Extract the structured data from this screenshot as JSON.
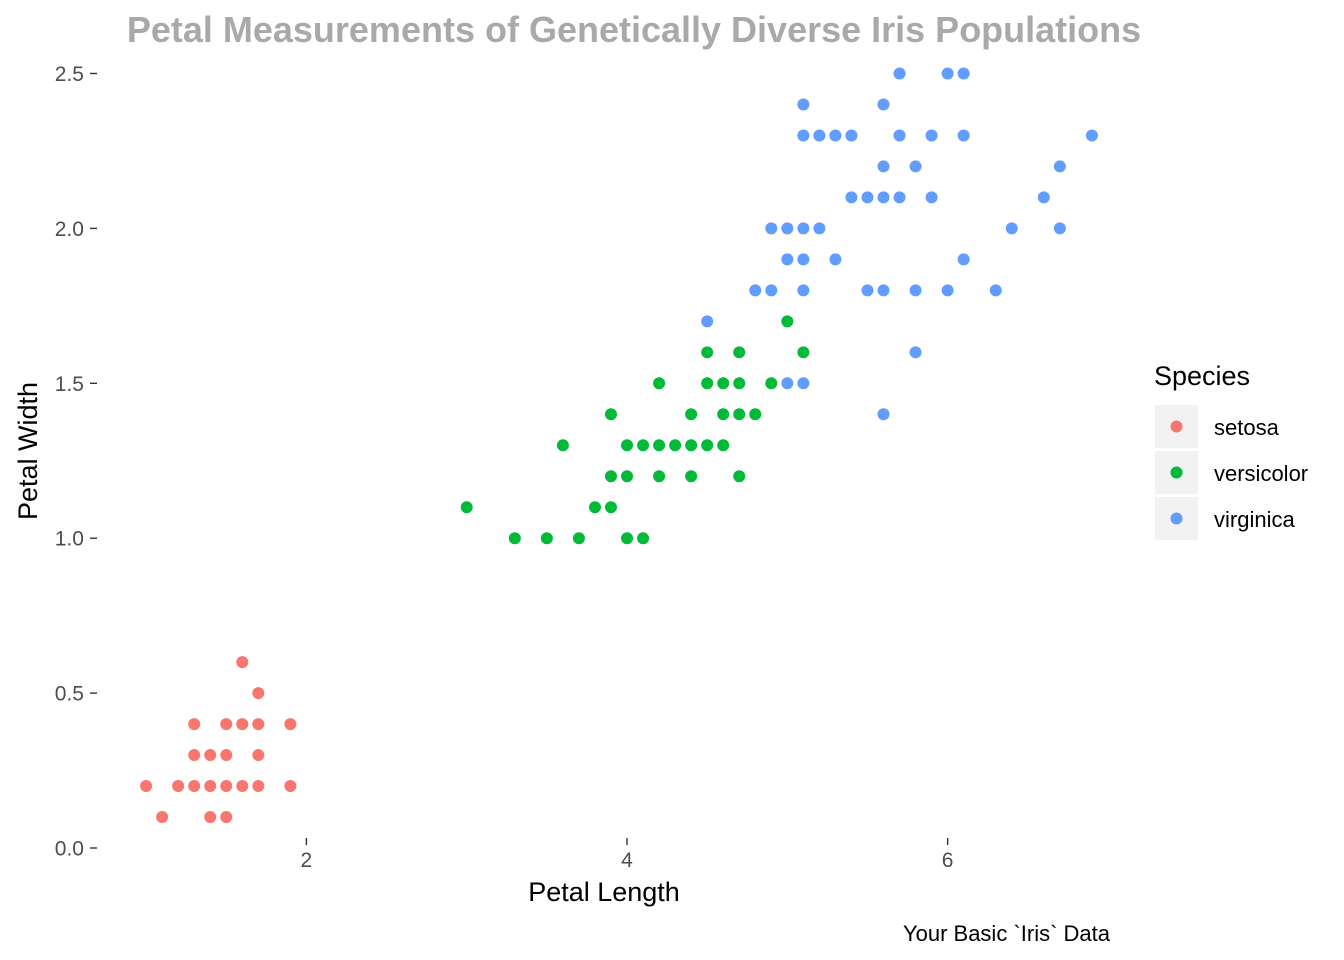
{
  "chart_data": {
    "type": "scatter",
    "title": "Petal Measurements of Genetically Diverse Iris Populations",
    "xlabel": "Petal Length",
    "ylabel": "Petal Width",
    "caption": "Your Basic `Iris` Data",
    "xlim": [
      0.7,
      7.2
    ],
    "ylim": [
      0,
      2.55
    ],
    "x_ticks": [
      2,
      4,
      6
    ],
    "y_ticks": [
      0.0,
      0.5,
      1.0,
      1.5,
      2.0,
      2.5
    ],
    "x_tick_labels": [
      "2",
      "4",
      "6"
    ],
    "y_tick_labels": [
      "0.0",
      "0.5",
      "1.0",
      "1.5",
      "2.0",
      "2.5"
    ],
    "grid": false,
    "legend": {
      "title": "Species",
      "position": "right"
    },
    "colors": {
      "title": "#a9a9a9",
      "tick": "#4d4d4d",
      "legend_key_bg": "#f2f2f2"
    },
    "series": [
      {
        "name": "setosa",
        "color": "#f8766d",
        "points": [
          [
            1.0,
            0.2
          ],
          [
            1.1,
            0.1
          ],
          [
            1.2,
            0.2
          ],
          [
            1.3,
            0.2
          ],
          [
            1.3,
            0.3
          ],
          [
            1.3,
            0.4
          ],
          [
            1.4,
            0.1
          ],
          [
            1.4,
            0.2
          ],
          [
            1.4,
            0.3
          ],
          [
            1.5,
            0.1
          ],
          [
            1.5,
            0.2
          ],
          [
            1.5,
            0.3
          ],
          [
            1.5,
            0.4
          ],
          [
            1.6,
            0.2
          ],
          [
            1.6,
            0.4
          ],
          [
            1.6,
            0.6
          ],
          [
            1.7,
            0.2
          ],
          [
            1.7,
            0.3
          ],
          [
            1.7,
            0.4
          ],
          [
            1.7,
            0.5
          ],
          [
            1.9,
            0.2
          ],
          [
            1.9,
            0.4
          ]
        ]
      },
      {
        "name": "versicolor",
        "color": "#00ba38",
        "points": [
          [
            3.0,
            1.1
          ],
          [
            3.3,
            1.0
          ],
          [
            3.5,
            1.0
          ],
          [
            3.6,
            1.3
          ],
          [
            3.7,
            1.0
          ],
          [
            3.8,
            1.1
          ],
          [
            3.9,
            1.1
          ],
          [
            3.9,
            1.2
          ],
          [
            3.9,
            1.4
          ],
          [
            4.0,
            1.0
          ],
          [
            4.0,
            1.2
          ],
          [
            4.0,
            1.3
          ],
          [
            4.1,
            1.0
          ],
          [
            4.1,
            1.3
          ],
          [
            4.2,
            1.2
          ],
          [
            4.2,
            1.3
          ],
          [
            4.2,
            1.5
          ],
          [
            4.3,
            1.3
          ],
          [
            4.4,
            1.2
          ],
          [
            4.4,
            1.3
          ],
          [
            4.4,
            1.4
          ],
          [
            4.5,
            1.3
          ],
          [
            4.5,
            1.5
          ],
          [
            4.5,
            1.6
          ],
          [
            4.6,
            1.3
          ],
          [
            4.6,
            1.4
          ],
          [
            4.6,
            1.5
          ],
          [
            4.7,
            1.2
          ],
          [
            4.7,
            1.4
          ],
          [
            4.7,
            1.5
          ],
          [
            4.7,
            1.6
          ],
          [
            4.8,
            1.4
          ],
          [
            4.9,
            1.5
          ],
          [
            5.0,
            1.7
          ],
          [
            5.1,
            1.6
          ]
        ]
      },
      {
        "name": "virginica",
        "color": "#619cff",
        "points": [
          [
            4.5,
            1.7
          ],
          [
            4.8,
            1.8
          ],
          [
            4.9,
            1.8
          ],
          [
            4.9,
            2.0
          ],
          [
            5.0,
            1.5
          ],
          [
            5.0,
            1.9
          ],
          [
            5.0,
            2.0
          ],
          [
            5.1,
            1.5
          ],
          [
            5.1,
            1.8
          ],
          [
            5.1,
            1.9
          ],
          [
            5.1,
            2.0
          ],
          [
            5.1,
            2.3
          ],
          [
            5.1,
            2.4
          ],
          [
            5.2,
            2.0
          ],
          [
            5.2,
            2.3
          ],
          [
            5.3,
            1.9
          ],
          [
            5.3,
            2.3
          ],
          [
            5.4,
            2.1
          ],
          [
            5.4,
            2.3
          ],
          [
            5.5,
            1.8
          ],
          [
            5.5,
            2.1
          ],
          [
            5.6,
            1.4
          ],
          [
            5.6,
            1.8
          ],
          [
            5.6,
            2.1
          ],
          [
            5.6,
            2.2
          ],
          [
            5.6,
            2.4
          ],
          [
            5.7,
            2.1
          ],
          [
            5.7,
            2.3
          ],
          [
            5.7,
            2.5
          ],
          [
            5.8,
            1.6
          ],
          [
            5.8,
            1.8
          ],
          [
            5.8,
            2.2
          ],
          [
            5.9,
            2.1
          ],
          [
            5.9,
            2.3
          ],
          [
            6.0,
            1.8
          ],
          [
            6.0,
            2.5
          ],
          [
            6.1,
            1.9
          ],
          [
            6.1,
            2.3
          ],
          [
            6.1,
            2.5
          ],
          [
            6.3,
            1.8
          ],
          [
            6.4,
            2.0
          ],
          [
            6.6,
            2.1
          ],
          [
            6.7,
            2.0
          ],
          [
            6.7,
            2.2
          ],
          [
            6.9,
            2.3
          ]
        ]
      }
    ]
  }
}
